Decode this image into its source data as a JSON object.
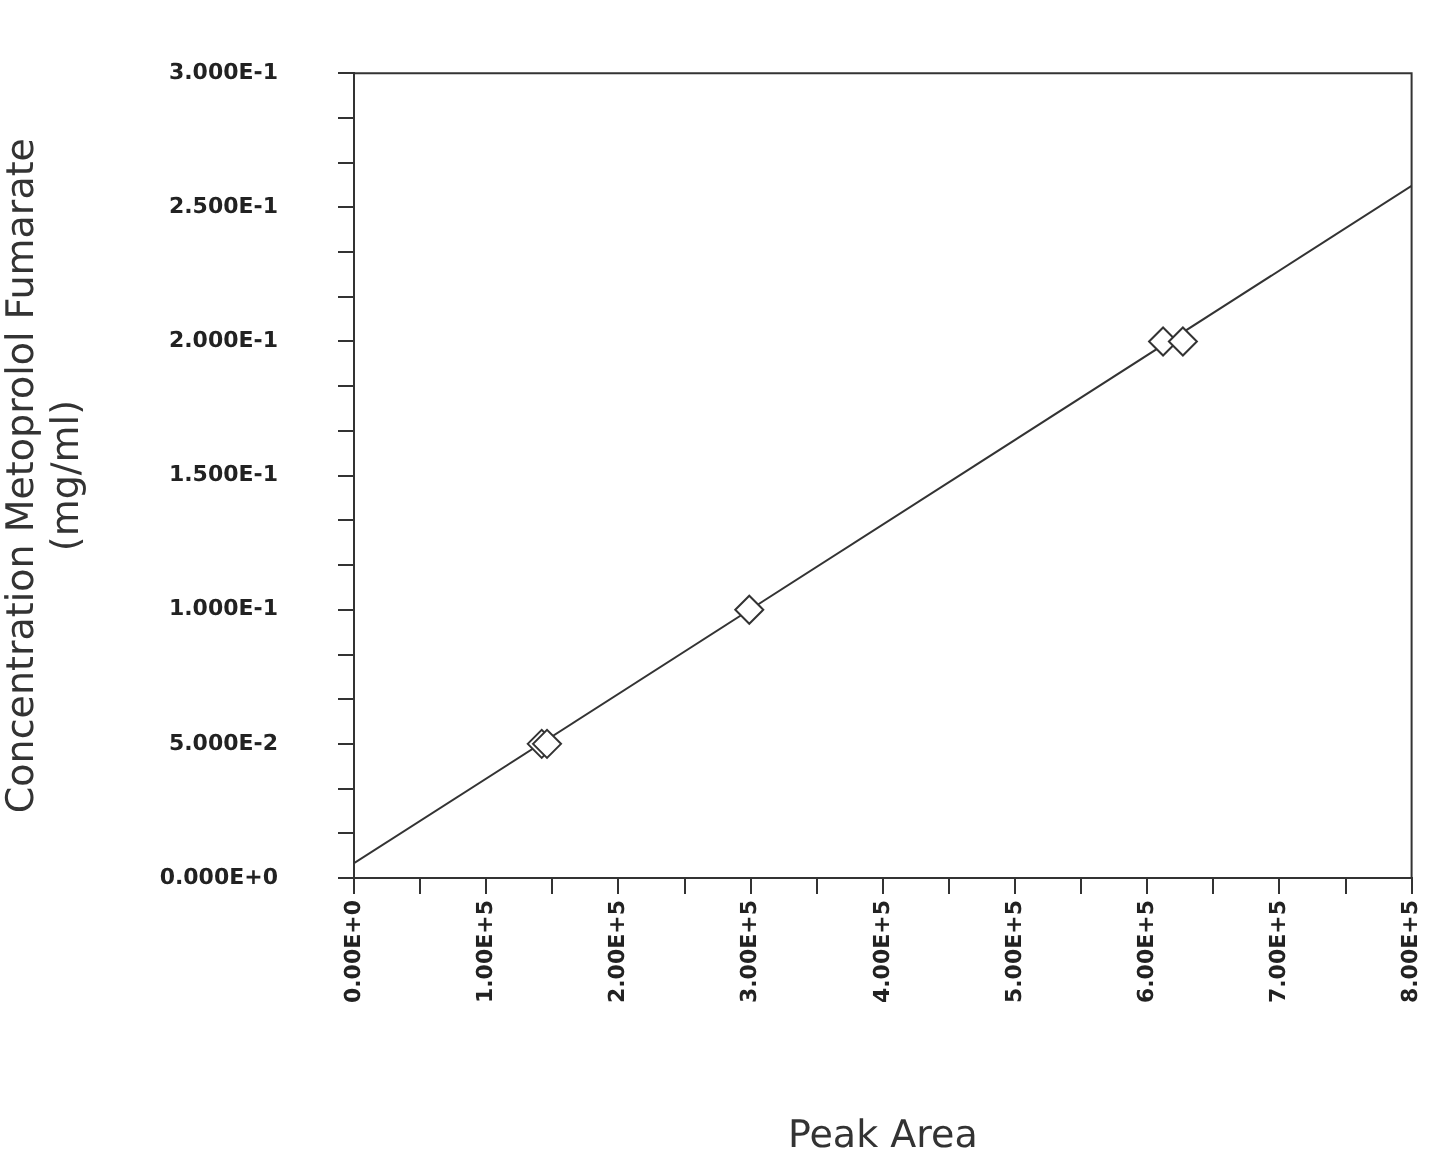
{
  "chart_data": {
    "type": "scatter",
    "xlabel": "Peak Area",
    "ylabel": "Concentration Metoprolol Fumarate\n(mg/ml)",
    "xlim": [
      0,
      800000
    ],
    "ylim": [
      0,
      0.3
    ],
    "xticks": [
      {
        "value": 0,
        "label": "0.00E+0"
      },
      {
        "value": 50000,
        "label": null
      },
      {
        "value": 100000,
        "label": "1.00E+5"
      },
      {
        "value": 150000,
        "label": null
      },
      {
        "value": 200000,
        "label": "2.00E+5"
      },
      {
        "value": 250000,
        "label": null
      },
      {
        "value": 300000,
        "label": "3.00E+5"
      },
      {
        "value": 350000,
        "label": null
      },
      {
        "value": 400000,
        "label": "4.00E+5"
      },
      {
        "value": 450000,
        "label": null
      },
      {
        "value": 500000,
        "label": "5.00E+5"
      },
      {
        "value": 550000,
        "label": null
      },
      {
        "value": 600000,
        "label": "6.00E+5"
      },
      {
        "value": 650000,
        "label": null
      },
      {
        "value": 700000,
        "label": "7.00E+5"
      },
      {
        "value": 750000,
        "label": null
      },
      {
        "value": 800000,
        "label": "8.00E+5"
      }
    ],
    "yticks": [
      {
        "value": 0,
        "label": "0.000E+0"
      },
      {
        "value": 0.0167,
        "label": null
      },
      {
        "value": 0.0333,
        "label": null
      },
      {
        "value": 0.05,
        "label": "5.000E-2"
      },
      {
        "value": 0.0667,
        "label": null
      },
      {
        "value": 0.0833,
        "label": null
      },
      {
        "value": 0.1,
        "label": "1.000E-1"
      },
      {
        "value": 0.1167,
        "label": null
      },
      {
        "value": 0.1333,
        "label": null
      },
      {
        "value": 0.15,
        "label": "1.500E-1"
      },
      {
        "value": 0.1667,
        "label": null
      },
      {
        "value": 0.1833,
        "label": null
      },
      {
        "value": 0.2,
        "label": "2.000E-1"
      },
      {
        "value": 0.2167,
        "label": null
      },
      {
        "value": 0.2333,
        "label": null
      },
      {
        "value": 0.25,
        "label": "2.500E-1"
      },
      {
        "value": 0.2667,
        "label": null
      },
      {
        "value": 0.2833,
        "label": null
      },
      {
        "value": 0.3,
        "label": "3.000E-1"
      }
    ],
    "marker": "diamond",
    "grid": false,
    "legend": false,
    "series": [
      {
        "color": "#333333",
        "x": [
          142000,
          146000,
          299000,
          612000,
          627000
        ],
        "values": [
          0.05,
          0.05,
          0.1,
          0.2,
          0.2
        ]
      },
      {
        "type": "line",
        "color": "#333333",
        "marker": "none",
        "x": [
          0,
          800000
        ],
        "values": [
          0.0055,
          0.258
        ]
      }
    ]
  }
}
